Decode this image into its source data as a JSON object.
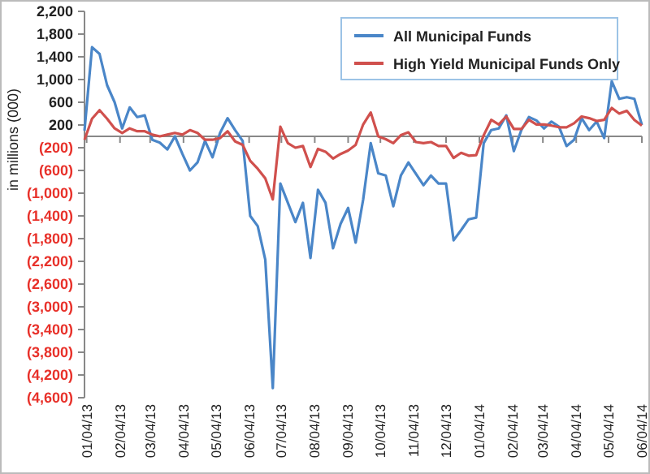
{
  "chart_data": {
    "type": "line",
    "ylabel": "in millions (000)",
    "x": [
      "2013-01-02",
      "2013-01-09",
      "2013-01-16",
      "2013-01-23",
      "2013-01-30",
      "2013-02-06",
      "2013-02-13",
      "2013-02-20",
      "2013-02-27",
      "2013-03-06",
      "2013-03-13",
      "2013-03-20",
      "2013-03-27",
      "2013-04-03",
      "2013-04-10",
      "2013-04-17",
      "2013-04-24",
      "2013-05-01",
      "2013-05-08",
      "2013-05-15",
      "2013-05-22",
      "2013-05-29",
      "2013-06-05",
      "2013-06-12",
      "2013-06-19",
      "2013-06-26",
      "2013-07-03",
      "2013-07-10",
      "2013-07-17",
      "2013-07-24",
      "2013-07-31",
      "2013-08-07",
      "2013-08-14",
      "2013-08-21",
      "2013-08-28",
      "2013-09-04",
      "2013-09-11",
      "2013-09-18",
      "2013-09-25",
      "2013-10-02",
      "2013-10-09",
      "2013-10-16",
      "2013-10-23",
      "2013-10-30",
      "2013-11-06",
      "2013-11-13",
      "2013-11-20",
      "2013-11-27",
      "2013-12-04",
      "2013-12-11",
      "2013-12-18",
      "2013-12-25",
      "2014-01-01",
      "2014-01-08",
      "2014-01-15",
      "2014-01-22",
      "2014-01-29",
      "2014-02-05",
      "2014-02-12",
      "2014-02-19",
      "2014-02-26",
      "2014-03-05",
      "2014-03-12",
      "2014-03-19",
      "2014-03-26",
      "2014-04-02",
      "2014-04-09",
      "2014-04-16",
      "2014-04-23",
      "2014-04-30",
      "2014-05-07",
      "2014-05-14",
      "2014-05-21",
      "2014-05-28",
      "2014-06-04"
    ],
    "series": [
      {
        "name": "All Municipal Funds",
        "color": "#4a86c8",
        "values": [
          100,
          1570,
          1450,
          900,
          600,
          140,
          510,
          340,
          370,
          -60,
          -110,
          -230,
          0,
          -310,
          -600,
          -460,
          -80,
          -370,
          60,
          320,
          110,
          -80,
          -1400,
          -1580,
          -2170,
          -4430,
          -830,
          -1170,
          -1510,
          -1170,
          -2140,
          -940,
          -1170,
          -1970,
          -1540,
          -1260,
          -1870,
          -1110,
          -120,
          -650,
          -690,
          -1230,
          -690,
          -460,
          -660,
          -860,
          -690,
          -830,
          -830,
          -1830,
          -1650,
          -1460,
          -1430,
          -120,
          110,
          140,
          370,
          -260,
          110,
          340,
          280,
          140,
          260,
          170,
          -170,
          -60,
          320,
          110,
          260,
          -30,
          970,
          660,
          690,
          660,
          200
        ]
      },
      {
        "name": "High Yield Municipal Funds Only",
        "color": "#d0504d",
        "values": [
          -60,
          310,
          460,
          310,
          140,
          60,
          140,
          90,
          90,
          30,
          0,
          30,
          60,
          30,
          110,
          60,
          -60,
          -60,
          -30,
          90,
          -90,
          -150,
          -430,
          -570,
          -740,
          -1110,
          170,
          -120,
          -200,
          -170,
          -540,
          -220,
          -270,
          -390,
          -310,
          -250,
          -150,
          210,
          420,
          0,
          -50,
          -120,
          20,
          70,
          -100,
          -120,
          -100,
          -170,
          -170,
          -380,
          -290,
          -340,
          -330,
          20,
          290,
          210,
          350,
          130,
          130,
          290,
          210,
          210,
          190,
          160,
          160,
          230,
          350,
          320,
          270,
          290,
          500,
          400,
          450,
          290,
          190
        ]
      }
    ],
    "xlim": [
      "2013-01-02",
      "2014-06-04"
    ],
    "xticks": [
      {
        "value": "2013-01-04",
        "label": "01/04/13"
      },
      {
        "value": "2013-02-04",
        "label": "02/04/13"
      },
      {
        "value": "2013-03-04",
        "label": "03/04/13"
      },
      {
        "value": "2013-04-04",
        "label": "04/04/13"
      },
      {
        "value": "2013-05-04",
        "label": "05/04/13"
      },
      {
        "value": "2013-06-04",
        "label": "06/04/13"
      },
      {
        "value": "2013-07-04",
        "label": "07/04/13"
      },
      {
        "value": "2013-08-04",
        "label": "08/04/13"
      },
      {
        "value": "2013-09-04",
        "label": "09/04/13"
      },
      {
        "value": "2013-10-04",
        "label": "10/04/13"
      },
      {
        "value": "2013-11-04",
        "label": "11/04/13"
      },
      {
        "value": "2013-12-04",
        "label": "12/04/13"
      },
      {
        "value": "2014-01-04",
        "label": "01/04/14"
      },
      {
        "value": "2014-02-04",
        "label": "02/04/14"
      },
      {
        "value": "2014-03-04",
        "label": "03/04/14"
      },
      {
        "value": "2014-04-04",
        "label": "04/04/14"
      },
      {
        "value": "2014-05-04",
        "label": "05/04/14"
      },
      {
        "value": "2014-06-04",
        "label": "06/04/14"
      }
    ],
    "ylim": [
      -4600,
      2200
    ],
    "yticks": [
      {
        "value": 2200,
        "label": "2,200"
      },
      {
        "value": 1800,
        "label": "1,800"
      },
      {
        "value": 1400,
        "label": "1,400"
      },
      {
        "value": 1000,
        "label": "1,000"
      },
      600,
      200,
      {
        "value": -200,
        "label": "(200)"
      },
      {
        "value": -600,
        "label": "(600)"
      },
      {
        "value": -1000,
        "label": "(1,000)"
      },
      {
        "value": -1400,
        "label": "(1,400)"
      },
      {
        "value": -1800,
        "label": "(1,800)"
      },
      {
        "value": -2200,
        "label": "(2,200)"
      },
      {
        "value": -2600,
        "label": "(2,600)"
      },
      {
        "value": -3000,
        "label": "(3,000)"
      },
      {
        "value": -3400,
        "label": "(3,400)"
      },
      {
        "value": -3800,
        "label": "(3,800)"
      },
      {
        "value": -4200,
        "label": "(4,200)"
      },
      {
        "value": -4600,
        "label": "(4,600)"
      }
    ],
    "grid": false,
    "legend": "top right",
    "line_style": "solid",
    "marker": "none"
  }
}
